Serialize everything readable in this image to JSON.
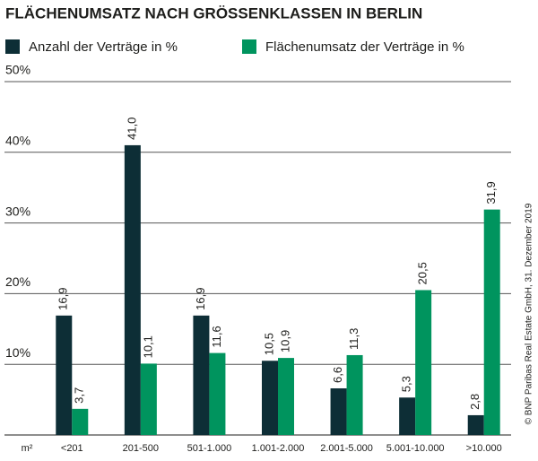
{
  "chart_data": {
    "type": "bar",
    "title": "FLÄCHENUMSATZ NACH GRÖSSENKLASSEN IN BERLIN",
    "xlabel": "m²",
    "source": "© BNP Paribas Real Estate GmbH, 31. Dezember 2019",
    "categories": [
      "<201",
      "201-500",
      "501-1.000",
      "1.001-2.000",
      "2.001-5.000",
      "5.001-10.000",
      ">10.000"
    ],
    "series": [
      {
        "name": "Anzahl der Verträge in %",
        "color": "#0d2e36",
        "values": [
          16.9,
          41.0,
          16.9,
          10.5,
          6.6,
          5.3,
          2.8
        ],
        "value_labels": [
          "16,9",
          "41,0",
          "16,9",
          "10,5",
          "6,6",
          "5,3",
          "2,8"
        ]
      },
      {
        "name": "Flächenumsatz der Verträge in %",
        "color": "#00945e",
        "values": [
          3.7,
          10.1,
          11.6,
          10.9,
          11.3,
          20.5,
          31.9
        ],
        "value_labels": [
          "3,7",
          "10,1",
          "11,6",
          "10,9",
          "11,3",
          "20,5",
          "31,9"
        ]
      }
    ],
    "ylim": [
      0,
      50
    ],
    "yticks": [
      {
        "value": 10,
        "label": "10%"
      },
      {
        "value": 20,
        "label": "20%"
      },
      {
        "value": 30,
        "label": "30%"
      },
      {
        "value": 40,
        "label": "40%"
      },
      {
        "value": 50,
        "label": "50%"
      }
    ],
    "grid": true
  }
}
